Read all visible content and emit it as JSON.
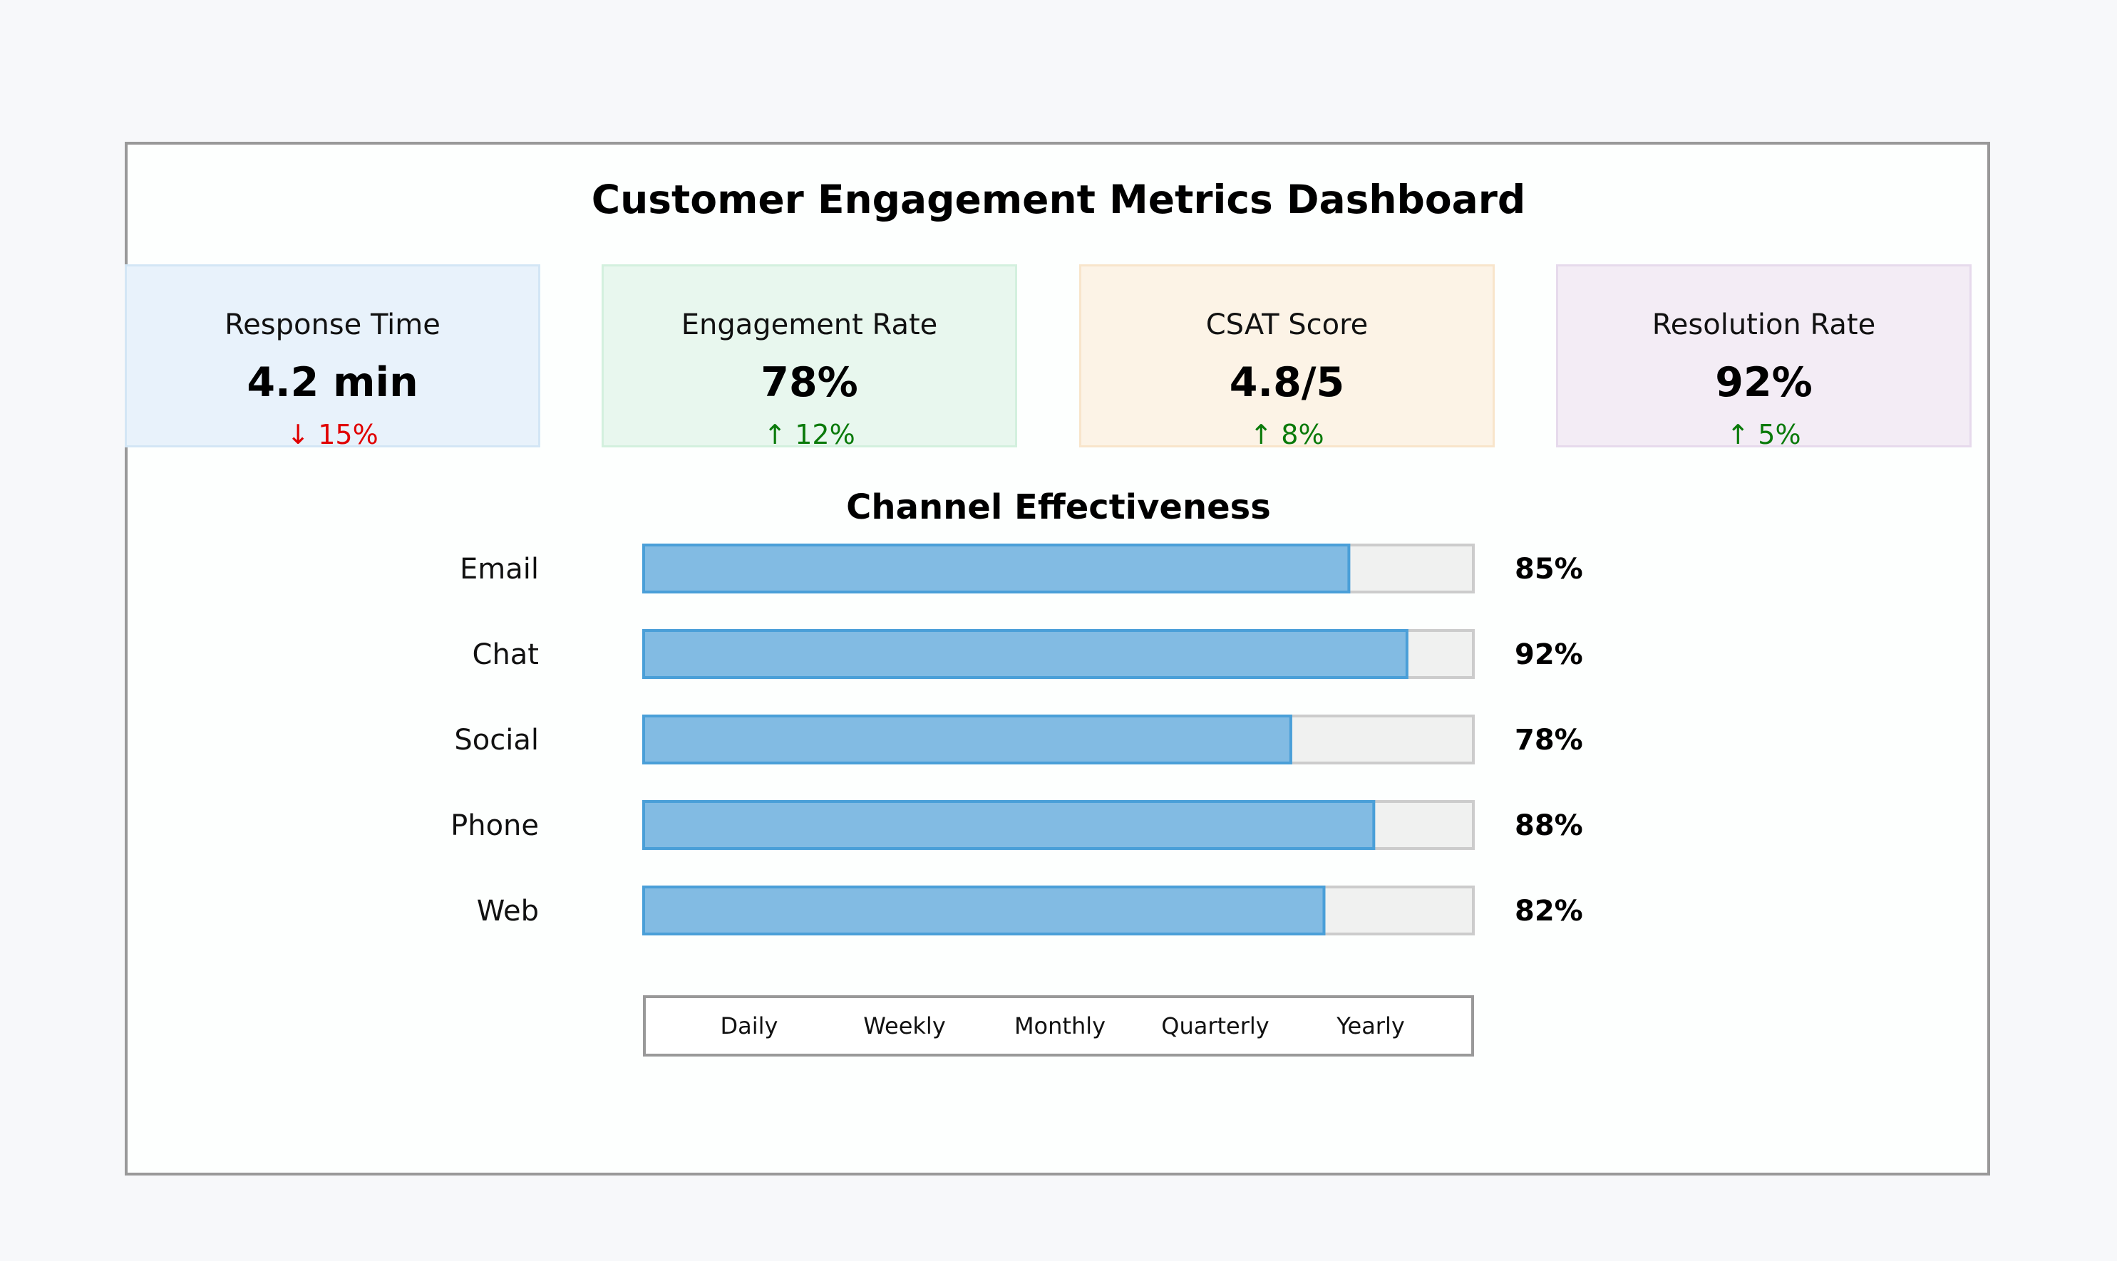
{
  "title": "Customer Engagement Metrics Dashboard",
  "kpis": [
    {
      "label": "Response Time",
      "value": "4.2 min",
      "change": "↓ 15%",
      "trend": "down",
      "bg": "#e8f2fb",
      "border": "#d3e6f5",
      "change_color": "#e00000"
    },
    {
      "label": "Engagement Rate",
      "value": "78%",
      "change": "↑ 12%",
      "trend": "up",
      "bg": "#e8f7ee",
      "border": "#d3f0de",
      "change_color": "#0a7a0a"
    },
    {
      "label": "CSAT Score",
      "value": "4.8/5",
      "change": "↑ 8%",
      "trend": "up",
      "bg": "#fcf3e6",
      "border": "#f8e5cb",
      "change_color": "#0a7a0a"
    },
    {
      "label": "Resolution Rate",
      "value": "92%",
      "change": "↑ 5%",
      "trend": "up",
      "bg": "#f3ecf5",
      "border": "#e6daec",
      "change_color": "#0a7a0a"
    }
  ],
  "chart_data": {
    "type": "bar",
    "orientation": "horizontal",
    "title": "Channel Effectiveness",
    "categories": [
      "Email",
      "Chat",
      "Social",
      "Phone",
      "Web"
    ],
    "values": [
      85,
      92,
      78,
      88,
      82
    ],
    "value_labels": [
      "85%",
      "92%",
      "78%",
      "88%",
      "82%"
    ],
    "xlim": [
      0,
      100
    ],
    "bar_color": "#82bbe3",
    "bar_edge_color": "#4a9fd8",
    "track_color": "#f0f1f0",
    "track_edge_color": "#cccccc"
  },
  "time_filter": {
    "options": [
      "Daily",
      "Weekly",
      "Monthly",
      "Quarterly",
      "Yearly"
    ]
  }
}
